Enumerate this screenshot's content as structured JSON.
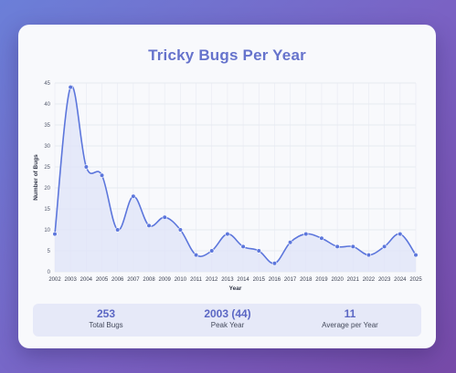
{
  "page": {
    "title": "Tricky Bugs Per Year"
  },
  "stats": [
    {
      "value": "253",
      "label": "Total Bugs"
    },
    {
      "value": "2003 (44)",
      "label": "Peak Year"
    },
    {
      "value": "11",
      "label": "Average per Year"
    }
  ],
  "colors": {
    "accent": "#6673cc",
    "line": "#5c76dc",
    "fill": "#dfe3f8",
    "stats_bg": "#e6e9f8"
  },
  "chart_data": {
    "type": "line",
    "title": "Tricky Bugs Per Year",
    "xlabel": "Year",
    "ylabel": "Number of Bugs",
    "ylim": [
      0,
      45
    ],
    "yticks": [
      0,
      5,
      10,
      15,
      20,
      25,
      30,
      35,
      40,
      45
    ],
    "grid": true,
    "fill_under": true,
    "smooth": true,
    "legend": "none",
    "x": [
      "2002",
      "2003",
      "2004",
      "2005",
      "2006",
      "2007",
      "2008",
      "2009",
      "2010",
      "2011",
      "2012",
      "2013",
      "2014",
      "2015",
      "2016",
      "2017",
      "2018",
      "2019",
      "2020",
      "2021",
      "2022",
      "2023",
      "2024",
      "2025"
    ],
    "series": [
      {
        "values": [
          9,
          44,
          25,
          23,
          10,
          18,
          11,
          13,
          10,
          4,
          5,
          9,
          6,
          5,
          2,
          7,
          9,
          8,
          6,
          6,
          4,
          6,
          9,
          4
        ]
      }
    ]
  }
}
